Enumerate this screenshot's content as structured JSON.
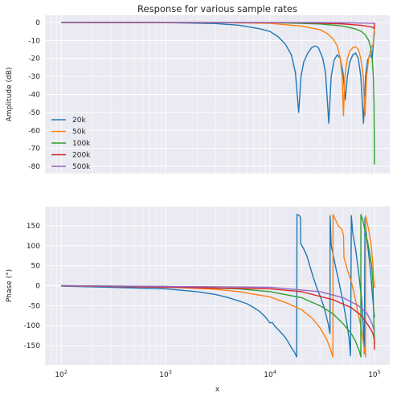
{
  "chart_data": [
    {
      "type": "line",
      "title": "Response for various sample rates",
      "xlabel": "",
      "ylabel": "Amplitude (dB)",
      "xscale": "log",
      "xlim": [
        70,
        140000
      ],
      "ylim": [
        -84,
        4
      ],
      "yticks": [
        0,
        -10,
        -20,
        -30,
        -40,
        -50,
        -60,
        -70,
        -80
      ],
      "grid": true,
      "legend": {
        "position": "lower-left",
        "entries": [
          "20k",
          "50k",
          "100k",
          "200k",
          "500k"
        ]
      },
      "series": [
        {
          "name": "20k",
          "color": "#1f77b4",
          "points": [
            [
              100,
              0
            ],
            [
              1000,
              -0.1
            ],
            [
              3000,
              -0.6
            ],
            [
              5000,
              -1.5
            ],
            [
              8000,
              -3.5
            ],
            [
              10000,
              -5
            ],
            [
              12000,
              -8
            ],
            [
              14000,
              -12
            ],
            [
              16000,
              -18
            ],
            [
              17500,
              -28
            ],
            [
              18800,
              -50
            ],
            [
              19800,
              -30
            ],
            [
              21000,
              -22
            ],
            [
              23000,
              -17
            ],
            [
              25000,
              -14
            ],
            [
              27000,
              -13
            ],
            [
              29000,
              -14
            ],
            [
              32000,
              -20
            ],
            [
              34000,
              -28
            ],
            [
              36500,
              -56
            ],
            [
              38500,
              -30
            ],
            [
              41000,
              -21
            ],
            [
              44000,
              -18
            ],
            [
              47000,
              -20
            ],
            [
              50000,
              -28
            ],
            [
              52500,
              -43
            ],
            [
              55000,
              -30
            ],
            [
              58000,
              -22
            ],
            [
              62000,
              -18
            ],
            [
              66000,
              -17
            ],
            [
              70000,
              -20
            ],
            [
              74000,
              -30
            ],
            [
              78500,
              -56
            ],
            [
              82000,
              -30
            ],
            [
              86000,
              -21
            ],
            [
              90000,
              -18
            ],
            [
              95000,
              -20
            ],
            [
              100000,
              -5
            ]
          ]
        },
        {
          "name": "50k",
          "color": "#ff7f0e",
          "points": [
            [
              100,
              0
            ],
            [
              3000,
              -0.1
            ],
            [
              10000,
              -0.5
            ],
            [
              20000,
              -2
            ],
            [
              30000,
              -4
            ],
            [
              35000,
              -6
            ],
            [
              40000,
              -9
            ],
            [
              44000,
              -13
            ],
            [
              47000,
              -20
            ],
            [
              49000,
              -30
            ],
            [
              50500,
              -52
            ],
            [
              52000,
              -30
            ],
            [
              55000,
              -20
            ],
            [
              58000,
              -16
            ],
            [
              62000,
              -14
            ],
            [
              66000,
              -13.5
            ],
            [
              70000,
              -15
            ],
            [
              74000,
              -20
            ],
            [
              78000,
              -30
            ],
            [
              81000,
              -52
            ],
            [
              84000,
              -30
            ],
            [
              88000,
              -20
            ],
            [
              93000,
              -14
            ],
            [
              97000,
              -12
            ],
            [
              100000,
              -2
            ]
          ]
        },
        {
          "name": "100k",
          "color": "#2ca02c",
          "points": [
            [
              100,
              0
            ],
            [
              10000,
              -0.1
            ],
            [
              30000,
              -0.8
            ],
            [
              50000,
              -2
            ],
            [
              65000,
              -3.5
            ],
            [
              75000,
              -5
            ],
            [
              82000,
              -7
            ],
            [
              88000,
              -10
            ],
            [
              92000,
              -14
            ],
            [
              95000,
              -20
            ],
            [
              97500,
              -30
            ],
            [
              99000,
              -45
            ],
            [
              100000,
              -79
            ]
          ]
        },
        {
          "name": "200k",
          "color": "#d62728",
          "points": [
            [
              100,
              0
            ],
            [
              20000,
              -0.1
            ],
            [
              50000,
              -0.8
            ],
            [
              75000,
              -1.6
            ],
            [
              90000,
              -2.3
            ],
            [
              97000,
              -2.8
            ],
            [
              99500,
              -3.5
            ],
            [
              100000,
              0
            ]
          ]
        },
        {
          "name": "500k",
          "color": "#9467bd",
          "points": [
            [
              100,
              0
            ],
            [
              30000,
              -0.05
            ],
            [
              60000,
              -0.2
            ],
            [
              100000,
              -0.5
            ]
          ]
        }
      ]
    },
    {
      "type": "line",
      "title": "",
      "xlabel": "x",
      "ylabel": "Phase (°)",
      "xscale": "log",
      "xlim": [
        70,
        140000
      ],
      "ylim": [
        -198,
        198
      ],
      "yticks": [
        150,
        100,
        50,
        0,
        -50,
        -100,
        -150
      ],
      "xticks": [
        100,
        1000,
        10000,
        100000
      ],
      "grid": true,
      "series": [
        {
          "name": "20k",
          "color": "#1f77b4",
          "points": [
            [
              100,
              -1
            ],
            [
              300,
              -4
            ],
            [
              1000,
              -8
            ],
            [
              2000,
              -15
            ],
            [
              3000,
              -22
            ],
            [
              4000,
              -30
            ],
            [
              5000,
              -38
            ],
            [
              6000,
              -45
            ],
            [
              7000,
              -55
            ],
            [
              8000,
              -65
            ],
            [
              9000,
              -78
            ],
            [
              10000,
              -93
            ],
            [
              10500,
              -92
            ],
            [
              11000,
              -100
            ],
            [
              12000,
              -110
            ],
            [
              13000,
              -120
            ],
            [
              14000,
              -130
            ],
            [
              15000,
              -142
            ],
            [
              16000,
              -155
            ],
            [
              17000,
              -165
            ],
            [
              18000,
              -178
            ],
            [
              18100,
              178
            ],
            [
              19000,
              176
            ],
            [
              19600,
              170
            ],
            [
              19700,
              105
            ],
            [
              21000,
              92
            ],
            [
              22500,
              75
            ],
            [
              24000,
              50
            ],
            [
              26000,
              20
            ],
            [
              28000,
              -5
            ],
            [
              30000,
              -25
            ],
            [
              33000,
              -55
            ],
            [
              36000,
              -95
            ],
            [
              37500,
              -120
            ],
            [
              37600,
              175
            ],
            [
              38500,
              100
            ],
            [
              40000,
              80
            ],
            [
              43000,
              40
            ],
            [
              46000,
              5
            ],
            [
              50000,
              -40
            ],
            [
              54000,
              -90
            ],
            [
              57000,
              -130
            ],
            [
              59000,
              -175
            ],
            [
              60000,
              175
            ],
            [
              62000,
              130
            ],
            [
              66000,
              90
            ],
            [
              70000,
              40
            ],
            [
              75000,
              -30
            ],
            [
              78000,
              -100
            ],
            [
              80000,
              -170
            ],
            [
              81000,
              170
            ],
            [
              84000,
              120
            ],
            [
              88000,
              80
            ],
            [
              92000,
              30
            ],
            [
              96000,
              -30
            ],
            [
              100000,
              -80
            ]
          ]
        },
        {
          "name": "50k",
          "color": "#ff7f0e",
          "points": [
            [
              100,
              -0.5
            ],
            [
              1000,
              -3
            ],
            [
              3000,
              -9
            ],
            [
              5000,
              -15
            ],
            [
              10000,
              -28
            ],
            [
              15000,
              -45
            ],
            [
              20000,
              -60
            ],
            [
              25000,
              -80
            ],
            [
              30000,
              -105
            ],
            [
              35000,
              -135
            ],
            [
              38000,
              -160
            ],
            [
              40000,
              -178
            ],
            [
              40100,
              178
            ],
            [
              45000,
              150
            ],
            [
              49000,
              140
            ],
            [
              50500,
              125
            ],
            [
              51000,
              70
            ],
            [
              55000,
              40
            ],
            [
              60000,
              10
            ],
            [
              65000,
              -30
            ],
            [
              70000,
              -70
            ],
            [
              75000,
              -110
            ],
            [
              80000,
              -160
            ],
            [
              82000,
              -178
            ],
            [
              82100,
              175
            ],
            [
              88000,
              140
            ],
            [
              93000,
              100
            ],
            [
              96000,
              60
            ],
            [
              100000,
              -5
            ]
          ]
        },
        {
          "name": "100k",
          "color": "#2ca02c",
          "points": [
            [
              100,
              -0.2
            ],
            [
              1000,
              -2
            ],
            [
              5000,
              -8
            ],
            [
              10000,
              -15
            ],
            [
              20000,
              -30
            ],
            [
              30000,
              -50
            ],
            [
              40000,
              -70
            ],
            [
              50000,
              -95
            ],
            [
              60000,
              -120
            ],
            [
              66000,
              -140
            ],
            [
              72000,
              -165
            ],
            [
              74000,
              -178
            ],
            [
              74100,
              178
            ],
            [
              78000,
              160
            ],
            [
              82000,
              130
            ],
            [
              86000,
              110
            ],
            [
              90000,
              80
            ],
            [
              94000,
              50
            ],
            [
              97000,
              0
            ],
            [
              100000,
              -150
            ]
          ]
        },
        {
          "name": "200k",
          "color": "#d62728",
          "points": [
            [
              100,
              -0.1
            ],
            [
              10000,
              -8
            ],
            [
              20000,
              -15
            ],
            [
              40000,
              -35
            ],
            [
              60000,
              -55
            ],
            [
              75000,
              -75
            ],
            [
              85000,
              -95
            ],
            [
              90000,
              -105
            ],
            [
              95000,
              -115
            ],
            [
              98000,
              -125
            ],
            [
              99500,
              -135
            ],
            [
              100000,
              -160
            ]
          ]
        },
        {
          "name": "500k",
          "color": "#9467bd",
          "points": [
            [
              100,
              0
            ],
            [
              10000,
              -4
            ],
            [
              30000,
              -15
            ],
            [
              50000,
              -30
            ],
            [
              70000,
              -50
            ],
            [
              85000,
              -70
            ],
            [
              95000,
              -95
            ],
            [
              100000,
              -115
            ]
          ]
        }
      ]
    }
  ]
}
